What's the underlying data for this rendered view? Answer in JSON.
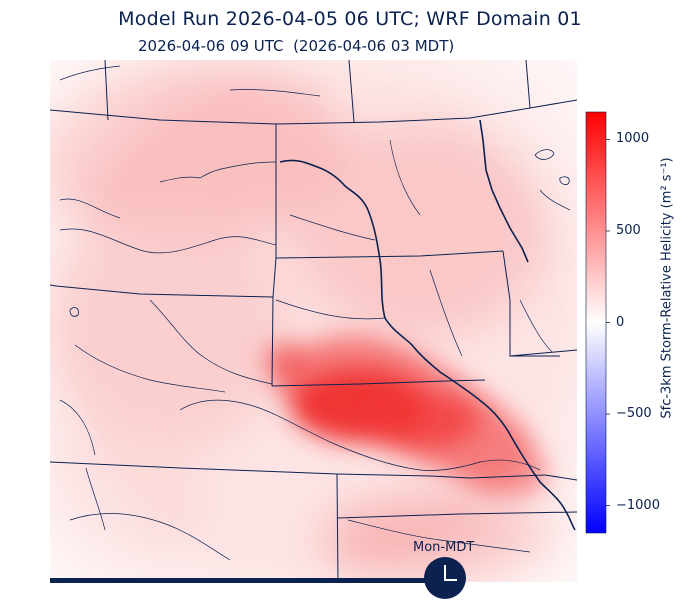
{
  "title": "Model Run 2026-04-05 06 UTC; WRF Domain 01",
  "subtitle": "2026-04-06 09 UTC  (2026-04-06 03 MDT)",
  "colorbar": {
    "label": "Sfc-3km Storm-Relative Helicity (m² s⁻¹)",
    "ticks": [
      "1000",
      "500",
      "0",
      "−500",
      "−1000"
    ],
    "tick_values": [
      1000,
      500,
      0,
      -500,
      -1000
    ],
    "range": [
      -1150,
      1150
    ],
    "colormap": [
      "#0000ff",
      "#ffffff",
      "#ff0000"
    ]
  },
  "timezone_label": "Mon-MDT",
  "colors": {
    "text": "#0b2150",
    "borders": "#0b2150",
    "max_field": "#ff0000",
    "min_field": "#0000ff"
  }
}
